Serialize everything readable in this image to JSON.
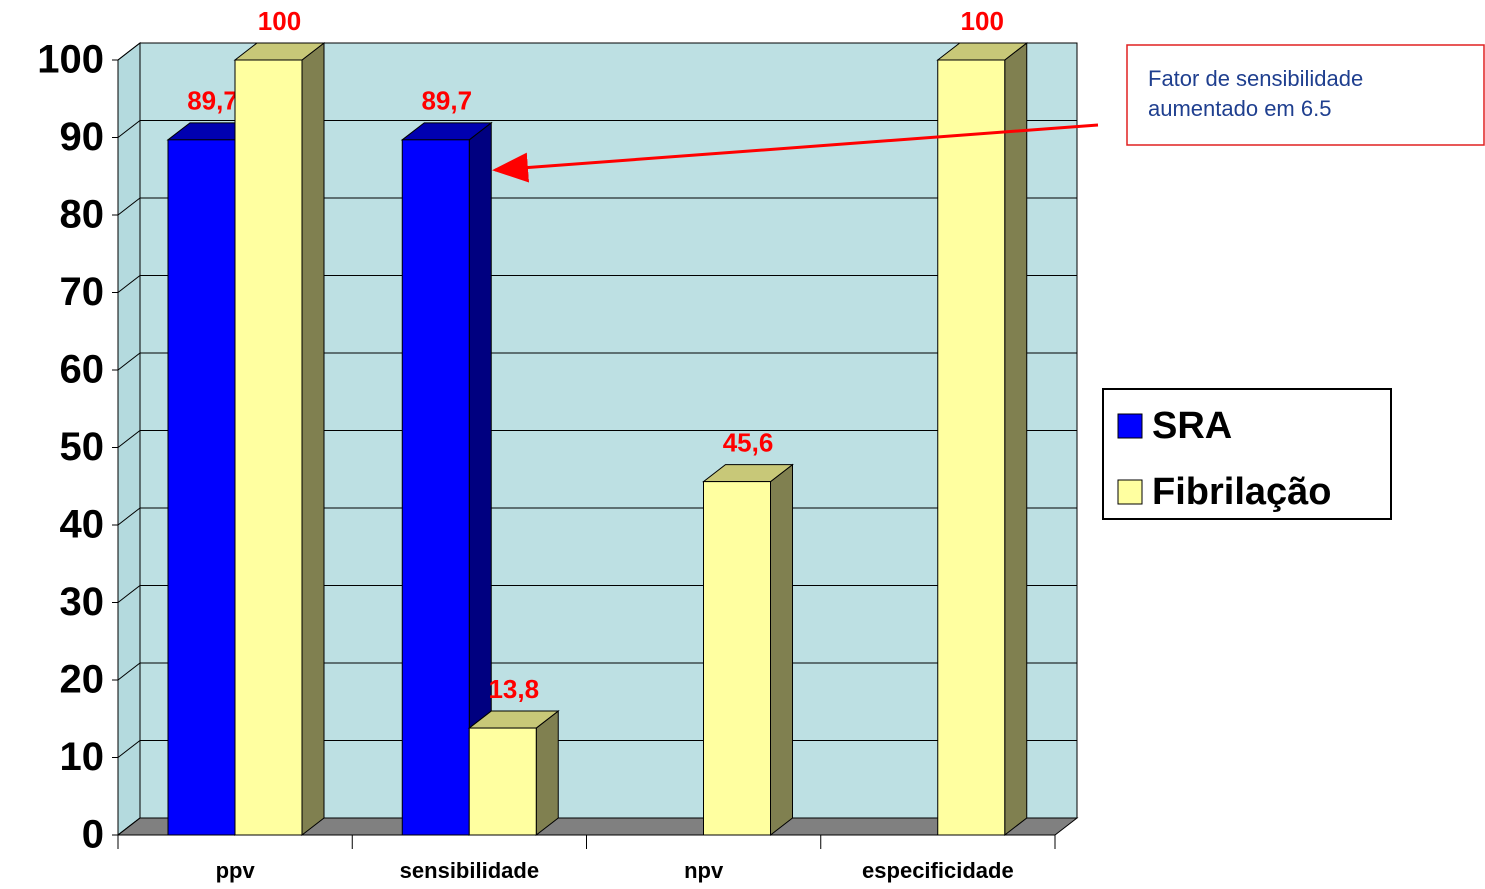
{
  "chart_data": {
    "type": "bar3d",
    "categories": [
      "ppv",
      "sensibilidade",
      "npv",
      "especificidade"
    ],
    "series": [
      {
        "name": "SRA",
        "color": "#0000ff",
        "values": [
          89.7,
          89.7,
          null,
          null
        ],
        "value_labels": [
          "89,7",
          "89,7",
          null,
          null
        ]
      },
      {
        "name": "Fibrilação",
        "color": "#ffffa0",
        "values": [
          100,
          13.8,
          45.6,
          100
        ],
        "value_labels": [
          "100",
          "13,8",
          "45,6",
          "100"
        ]
      }
    ],
    "ylim": [
      0,
      100
    ],
    "yticks": [
      0,
      10,
      20,
      30,
      40,
      50,
      60,
      70,
      80,
      90,
      100
    ],
    "grid": true,
    "legend": "right",
    "annotation": [
      "Fator de sensibilidade",
      "aumentado em 6.5"
    ]
  }
}
